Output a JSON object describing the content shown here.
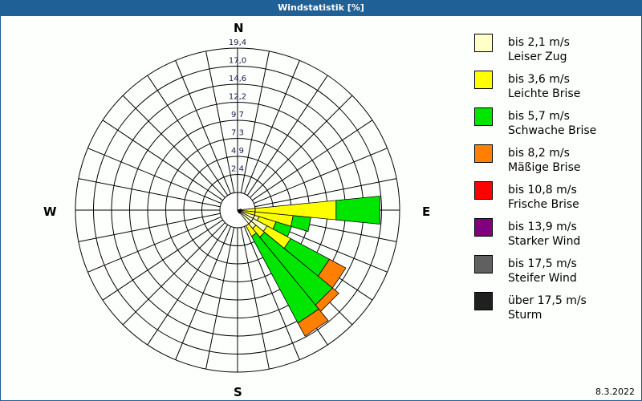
{
  "window": {
    "title": "Windstatistik [%]"
  },
  "compass": {
    "north": "N",
    "south": "S",
    "west": "W",
    "east": "E"
  },
  "footer": {
    "date": "8.3.2022"
  },
  "legend": [
    {
      "range": "bis 2,1 m/s",
      "name": "Leiser Zug",
      "color": "#ffffc8"
    },
    {
      "range": "bis 3,6 m/s",
      "name": "Leichte Brise",
      "color": "#ffff00"
    },
    {
      "range": "bis 5,7 m/s",
      "name": "Schwache Brise",
      "color": "#00e600"
    },
    {
      "range": "bis 8,2 m/s",
      "name": "Mäßige Brise",
      "color": "#ff8000"
    },
    {
      "range": "bis 10,8 m/s",
      "name": "Frische Brise",
      "color": "#ff0000"
    },
    {
      "range": "bis 13,9 m/s",
      "name": "Starker Wind",
      "color": "#800080"
    },
    {
      "range": "bis 17,5 m/s",
      "name": "Steifer Wind",
      "color": "#606060"
    },
    {
      "range": "über 17,5 m/s",
      "name": "Sturm",
      "color": "#202020"
    }
  ],
  "chart_data": {
    "type": "wind-rose",
    "title": "Windstatistik [%]",
    "unit": "%",
    "date": "8.3.2022",
    "radial_ticks": [
      "2,4",
      "4,9",
      "7,3",
      "9,7",
      "12,2",
      "14,6",
      "17,0",
      "19,4"
    ],
    "radial_max": 19.4,
    "sector_count": 32,
    "sector_width_deg": 11.25,
    "categories": [
      "bis 2,1 m/s",
      "bis 3,6 m/s",
      "bis 5,7 m/s",
      "bis 8,2 m/s",
      "bis 10,8 m/s",
      "bis 13,9 m/s",
      "bis 17,5 m/s",
      "über 17,5 m/s"
    ],
    "sectors": [
      {
        "direction_deg": 78.75,
        "values": [
          0.0,
          0.5,
          0.9,
          0.0,
          0,
          0,
          0,
          0
        ]
      },
      {
        "direction_deg": 90.0,
        "values": [
          0.0,
          13.3,
          5.9,
          0.0,
          0,
          0,
          0,
          0
        ]
      },
      {
        "direction_deg": 101.25,
        "values": [
          0.0,
          7.5,
          2.4,
          0.0,
          0,
          0,
          0,
          0
        ]
      },
      {
        "direction_deg": 112.5,
        "values": [
          3.0,
          2.4,
          2.2,
          0.0,
          0,
          0,
          0,
          0
        ]
      },
      {
        "direction_deg": 123.75,
        "values": [
          4.5,
          3.6,
          5.9,
          2.5,
          0,
          0,
          0,
          0
        ]
      },
      {
        "direction_deg": 135.0,
        "values": [
          3.2,
          1.5,
          11.8,
          1.1,
          0,
          0,
          0,
          0
        ]
      },
      {
        "direction_deg": 146.25,
        "values": [
          0.5,
          3.5,
          13.2,
          2.0,
          0,
          0,
          0,
          0
        ]
      },
      {
        "direction_deg": 157.5,
        "values": [
          0.0,
          0.0,
          0.3,
          0.5,
          0,
          0,
          0,
          0
        ]
      }
    ]
  }
}
